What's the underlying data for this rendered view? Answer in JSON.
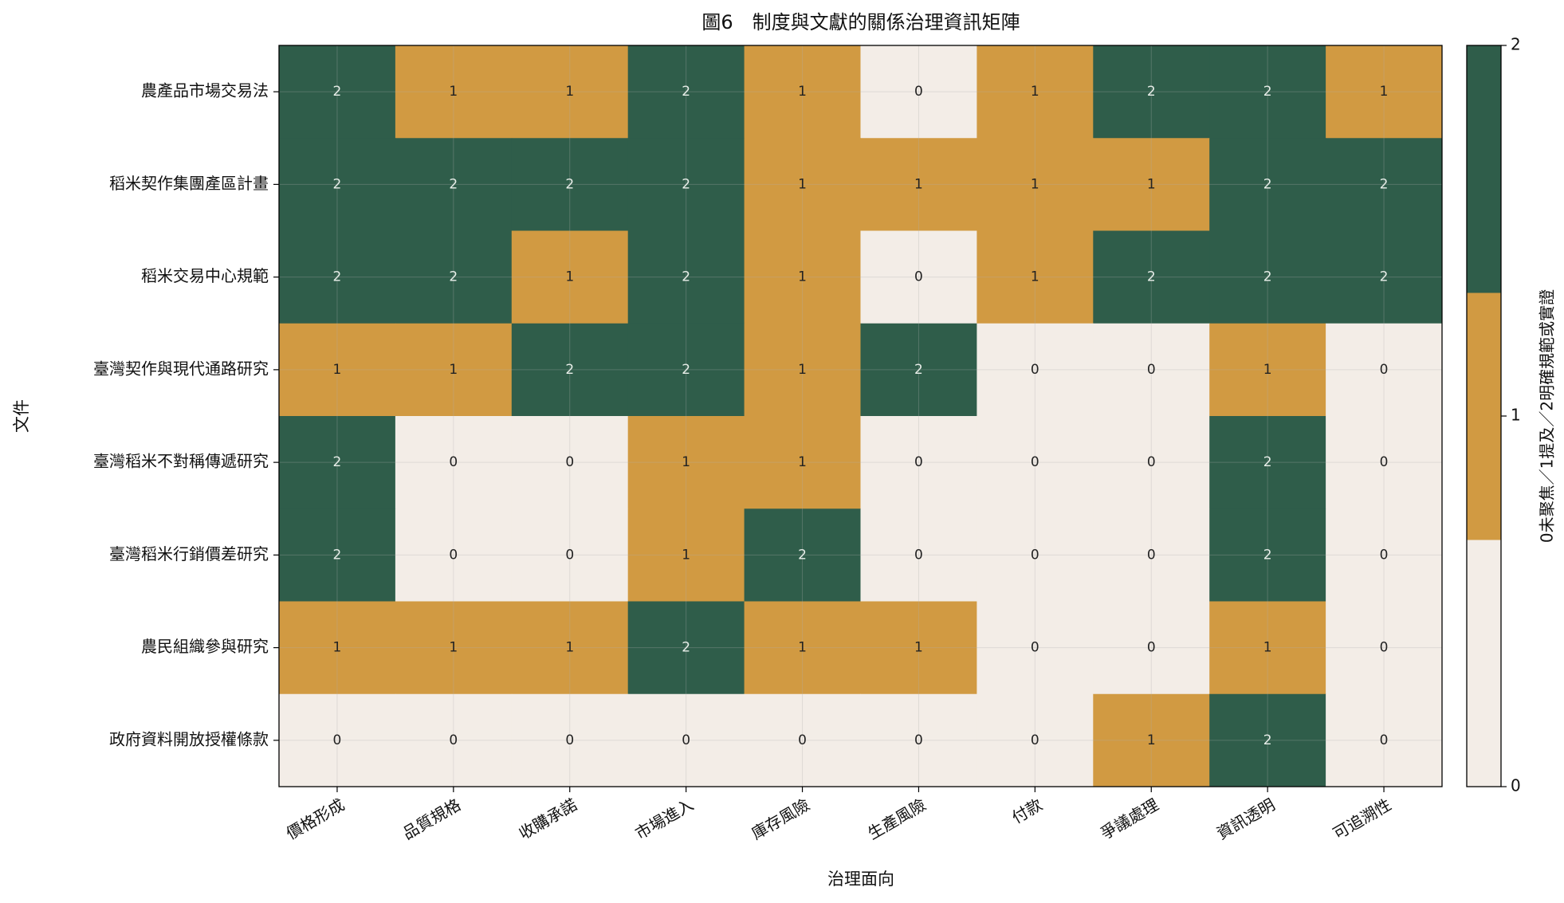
{
  "chart_data": {
    "type": "heatmap",
    "title": "圖6　制度與文獻的關係治理資訊矩陣",
    "x_label": "治理面向",
    "y_label": "文件",
    "x_categories": [
      "價格形成",
      "品質規格",
      "收購承諾",
      "市場進入",
      "庫存風險",
      "生產風險",
      "付款",
      "爭議處理",
      "資訊透明",
      "可追溯性"
    ],
    "y_categories": [
      "農產品市場交易法",
      "稻米契作集團產區計畫",
      "稻米交易中心規範",
      "臺灣契作與現代通路研究",
      "臺灣稻米不對稱傳遞研究",
      "臺灣稻米行銷價差研究",
      "農民組織參與研究",
      "政府資料開放授權條款"
    ],
    "values": [
      [
        2,
        1,
        1,
        2,
        1,
        0,
        1,
        2,
        2,
        1
      ],
      [
        2,
        2,
        2,
        2,
        1,
        1,
        1,
        1,
        2,
        2
      ],
      [
        2,
        2,
        1,
        2,
        1,
        0,
        1,
        2,
        2,
        2
      ],
      [
        1,
        1,
        2,
        2,
        1,
        2,
        0,
        0,
        1,
        0
      ],
      [
        2,
        0,
        0,
        1,
        1,
        0,
        0,
        0,
        2,
        0
      ],
      [
        2,
        0,
        0,
        1,
        2,
        0,
        0,
        0,
        2,
        0
      ],
      [
        1,
        1,
        1,
        2,
        1,
        1,
        0,
        0,
        1,
        0
      ],
      [
        0,
        0,
        0,
        0,
        0,
        0,
        0,
        1,
        2,
        0
      ]
    ],
    "colors": [
      "#f3ede7",
      "#d19a42",
      "#2f5d4a"
    ],
    "clim": [
      0,
      2
    ],
    "colorbar_ticks": [
      0,
      1,
      2
    ],
    "colorbar_label": "0未聚焦／1提及／2明確規範或實證",
    "grid": true
  }
}
